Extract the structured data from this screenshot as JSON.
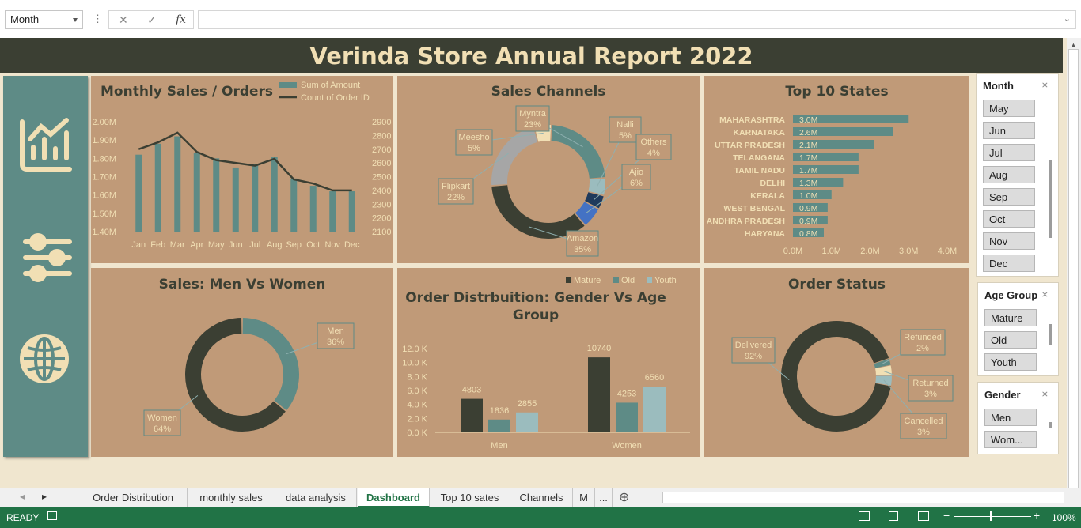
{
  "formula_bar": {
    "name_box": "Month",
    "cancel_icon": "✕",
    "enter_icon": "✓",
    "fx_label": "fx",
    "formula": ""
  },
  "dashboard": {
    "title": "Verinda Store Annual Report 2022"
  },
  "nav_icons": [
    "chart-icon",
    "sliders-icon",
    "globe-icon"
  ],
  "panels": {
    "monthly": "Monthly Sales / Orders",
    "channels": "Sales Channels",
    "states": "Top 10 States",
    "menwomen": "Sales: Men Vs Women",
    "gender_age_line1": "Order Distrbuition: Gender Vs Age",
    "gender_age_line2": "Group",
    "status": "Order Status"
  },
  "colors": {
    "teal": "#5e8b86",
    "dark": "#3b3f33",
    "panel": "#c09a78",
    "cream": "#f1dfb4",
    "excel_green": "#217346"
  },
  "chart_data": [
    {
      "type": "bar",
      "id": "monthly",
      "title": "Monthly Sales / Orders",
      "categories": [
        "Jan",
        "Feb",
        "Mar",
        "Apr",
        "May",
        "Jun",
        "Jul",
        "Aug",
        "Sep",
        "Oct",
        "Nov",
        "Dec"
      ],
      "series": [
        {
          "name": "Sum of Amount",
          "type": "bar",
          "axis": "left",
          "values": [
            1.82,
            1.88,
            1.92,
            1.83,
            1.8,
            1.75,
            1.77,
            1.81,
            1.69,
            1.65,
            1.62,
            1.62
          ]
        },
        {
          "name": "Count of Order ID",
          "type": "line",
          "axis": "right",
          "values": [
            2700,
            2750,
            2820,
            2680,
            2620,
            2600,
            2580,
            2630,
            2480,
            2450,
            2400,
            2400
          ]
        }
      ],
      "ylim_left": [
        1.4,
        2.0
      ],
      "yticks_left": [
        "1.40M",
        "1.50M",
        "1.60M",
        "1.70M",
        "1.80M",
        "1.90M",
        "2.00M"
      ],
      "ylim_right": [
        2100,
        2900
      ],
      "yticks_right": [
        "2100",
        "2200",
        "2300",
        "2400",
        "2500",
        "2600",
        "2700",
        "2800",
        "2900"
      ],
      "legend": "top-right"
    },
    {
      "type": "pie",
      "id": "channels",
      "title": "Sales Channels",
      "labels": [
        "Amazon",
        "Flipkart",
        "Meesho",
        "Myntra",
        "Nalli",
        "Others",
        "Ajio"
      ],
      "values": [
        35,
        22,
        5,
        23,
        5,
        4,
        6
      ],
      "display": [
        "35%",
        "22%",
        "5%",
        "23%",
        "5%",
        "4%",
        "6%"
      ],
      "colors": [
        "#3b3f33",
        "#a6a6a6",
        "#f1dfb4",
        "#5e8b86",
        "#9bbcbe",
        "#1f3a5c",
        "#4472c4"
      ]
    },
    {
      "type": "bar",
      "id": "states",
      "title": "Top 10 States",
      "categories": [
        "MAHARASHTRA",
        "KARNATAKA",
        "UTTAR PRADESH",
        "TELANGANA",
        "TAMIL NADU",
        "DELHI",
        "KERALA",
        "WEST BENGAL",
        "ANDHRA PRADESH",
        "HARYANA"
      ],
      "values": [
        3.0,
        2.6,
        2.1,
        1.7,
        1.7,
        1.3,
        1.0,
        0.9,
        0.9,
        0.8
      ],
      "labels": [
        "3.0M",
        "2.6M",
        "2.1M",
        "1.7M",
        "1.7M",
        "1.3M",
        "1.0M",
        "0.9M",
        "0.9M",
        "0.8M"
      ],
      "xlim": [
        0,
        4
      ],
      "xticks": [
        "0.0M",
        "1.0M",
        "2.0M",
        "3.0M",
        "4.0M"
      ],
      "orientation": "horizontal"
    },
    {
      "type": "pie",
      "id": "menwomen",
      "title": "Sales: Men Vs Women",
      "labels": [
        "Men",
        "Women"
      ],
      "values": [
        36,
        64
      ],
      "display": [
        "36%",
        "64%"
      ],
      "colors": [
        "#5e8b86",
        "#3b3f33"
      ]
    },
    {
      "type": "bar",
      "id": "genderage",
      "title": "Order Distrbuition: Gender Vs Age Group",
      "categories": [
        "Men",
        "Women"
      ],
      "series": [
        {
          "name": "Mature",
          "values": [
            4803,
            10740
          ],
          "color": "#3b3f33"
        },
        {
          "name": "Old",
          "values": [
            1836,
            4253
          ],
          "color": "#5e8b86"
        },
        {
          "name": "Youth",
          "values": [
            2855,
            6560
          ],
          "color": "#9bbcbe"
        }
      ],
      "ylim": [
        0,
        12000
      ],
      "yticks": [
        "0.0 K",
        "2.0 K",
        "4.0 K",
        "6.0 K",
        "8.0 K",
        "10.0 K",
        "12.0 K"
      ],
      "legend": "top"
    },
    {
      "type": "pie",
      "id": "status",
      "title": "Order Status",
      "labels": [
        "Delivered",
        "Refunded",
        "Returned",
        "Cancelled"
      ],
      "values": [
        92,
        2,
        3,
        3
      ],
      "display": [
        "92%",
        "2%",
        "3%",
        "3%"
      ],
      "colors": [
        "#3b3f33",
        "#5e8b86",
        "#f1dfb4",
        "#9bbcbe"
      ]
    }
  ],
  "slicers": {
    "month": {
      "title": "Month",
      "items": [
        "May",
        "Jun",
        "Jul",
        "Aug",
        "Sep",
        "Oct",
        "Nov",
        "Dec"
      ]
    },
    "age": {
      "title": "Age Group",
      "items": [
        "Mature",
        "Old",
        "Youth"
      ]
    },
    "gender": {
      "title": "Gender",
      "items": [
        "Men",
        "Wom..."
      ]
    }
  },
  "tabs": [
    "Order Distribution",
    "monthly sales",
    "data analysis",
    "Dashboard",
    "Top 10 sates",
    "Channels",
    "M",
    "..."
  ],
  "active_tab": "Dashboard",
  "status_bar": {
    "ready": "READY",
    "zoom": "100%"
  }
}
